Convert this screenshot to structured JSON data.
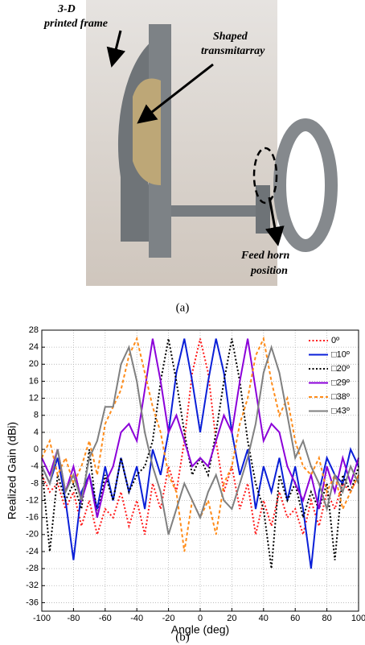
{
  "photo": {
    "annotations": [
      "3-D",
      "printed frame",
      "Shaped",
      "transmitarray",
      "Feed horn",
      "position"
    ],
    "caption": "(a)"
  },
  "chart_data": {
    "type": "line",
    "xlabel": "Angle (deg)",
    "ylabel": "Realized Gain (dBi)",
    "x": [
      -100,
      -95,
      -90,
      -85,
      -80,
      -75,
      -70,
      -65,
      -60,
      -55,
      -50,
      -45,
      -40,
      -35,
      -30,
      -25,
      -20,
      -15,
      -10,
      -5,
      0,
      5,
      10,
      15,
      20,
      25,
      30,
      35,
      40,
      45,
      50,
      55,
      60,
      65,
      70,
      75,
      80,
      85,
      90,
      95,
      100
    ],
    "xlim": [
      -100,
      100
    ],
    "xticks": [
      -100,
      -80,
      -60,
      -40,
      -20,
      0,
      20,
      40,
      60,
      80,
      100
    ],
    "ylim": [
      -38,
      28
    ],
    "yticks": [
      28,
      24,
      20,
      16,
      12,
      8,
      4,
      0,
      -4,
      -8,
      -12,
      -16,
      -20,
      -24,
      -28,
      -32,
      -36
    ],
    "grid": true,
    "legend": "upper right",
    "series": [
      {
        "name": "0º",
        "color": "#ff1a1a",
        "dash": "dotted",
        "values": [
          -6,
          -10,
          -8,
          -14,
          -10,
          -18,
          -12,
          -20,
          -14,
          -16,
          -10,
          -18,
          -12,
          -20,
          -8,
          -14,
          -4,
          -10,
          2,
          18,
          26,
          18,
          2,
          -10,
          -4,
          -14,
          -8,
          -20,
          -12,
          -18,
          -10,
          -16,
          -14,
          -20,
          -12,
          -18,
          -10,
          -14,
          -8,
          -10,
          -6
        ]
      },
      {
        "name": "□10º",
        "color": "#0a1fd8",
        "dash": "solid",
        "values": [
          -4,
          -8,
          -2,
          -12,
          -26,
          -10,
          -6,
          -14,
          -4,
          -12,
          -2,
          -10,
          -4,
          -14,
          0,
          -6,
          4,
          18,
          26,
          16,
          4,
          16,
          26,
          18,
          4,
          -6,
          0,
          -14,
          -4,
          -10,
          -2,
          -12,
          -4,
          -14,
          -28,
          -10,
          -2,
          -6,
          -8,
          0,
          -4
        ]
      },
      {
        "name": "□20º",
        "color": "#000000",
        "dash": "dotted",
        "values": [
          -4,
          -24,
          -6,
          -12,
          -8,
          -14,
          0,
          -16,
          -6,
          -12,
          -2,
          -10,
          -6,
          -4,
          2,
          16,
          26,
          16,
          4,
          -6,
          -2,
          -6,
          4,
          16,
          26,
          16,
          2,
          -8,
          -14,
          -28,
          -6,
          -12,
          -8,
          -16,
          -10,
          -14,
          -8,
          -26,
          -6,
          -10,
          -4
        ]
      },
      {
        "name": "□29º",
        "color": "#8b00d9",
        "dash": "solid",
        "values": [
          -2,
          -6,
          0,
          -10,
          -4,
          -12,
          -6,
          -16,
          -8,
          -4,
          4,
          6,
          2,
          14,
          26,
          16,
          4,
          8,
          2,
          -4,
          -2,
          -4,
          2,
          8,
          4,
          16,
          26,
          14,
          2,
          6,
          4,
          -4,
          -8,
          -12,
          -6,
          -14,
          -4,
          -10,
          -2,
          -8,
          -2
        ]
      },
      {
        "name": "□38º",
        "color": "#ff8c1a",
        "dash": "dashed",
        "values": [
          -2,
          2,
          -6,
          -2,
          -8,
          -4,
          2,
          -6,
          6,
          10,
          14,
          22,
          26,
          18,
          10,
          4,
          -6,
          -10,
          -24,
          -12,
          -16,
          -12,
          -20,
          -8,
          -4,
          6,
          12,
          22,
          26,
          16,
          8,
          12,
          2,
          -4,
          -6,
          -2,
          -10,
          -6,
          -14,
          -10,
          -6
        ]
      },
      {
        "name": "□43º",
        "color": "#808080",
        "dash": "solid",
        "values": [
          -4,
          -8,
          0,
          -10,
          -6,
          -12,
          -2,
          2,
          10,
          10,
          20,
          24,
          16,
          4,
          -4,
          -10,
          -20,
          -14,
          -8,
          -12,
          -16,
          -10,
          -6,
          -12,
          -14,
          -8,
          -2,
          6,
          18,
          24,
          18,
          8,
          -2,
          2,
          -4,
          -8,
          -14,
          -6,
          -10,
          -4,
          -8
        ]
      }
    ]
  },
  "caption_b": "(b)"
}
